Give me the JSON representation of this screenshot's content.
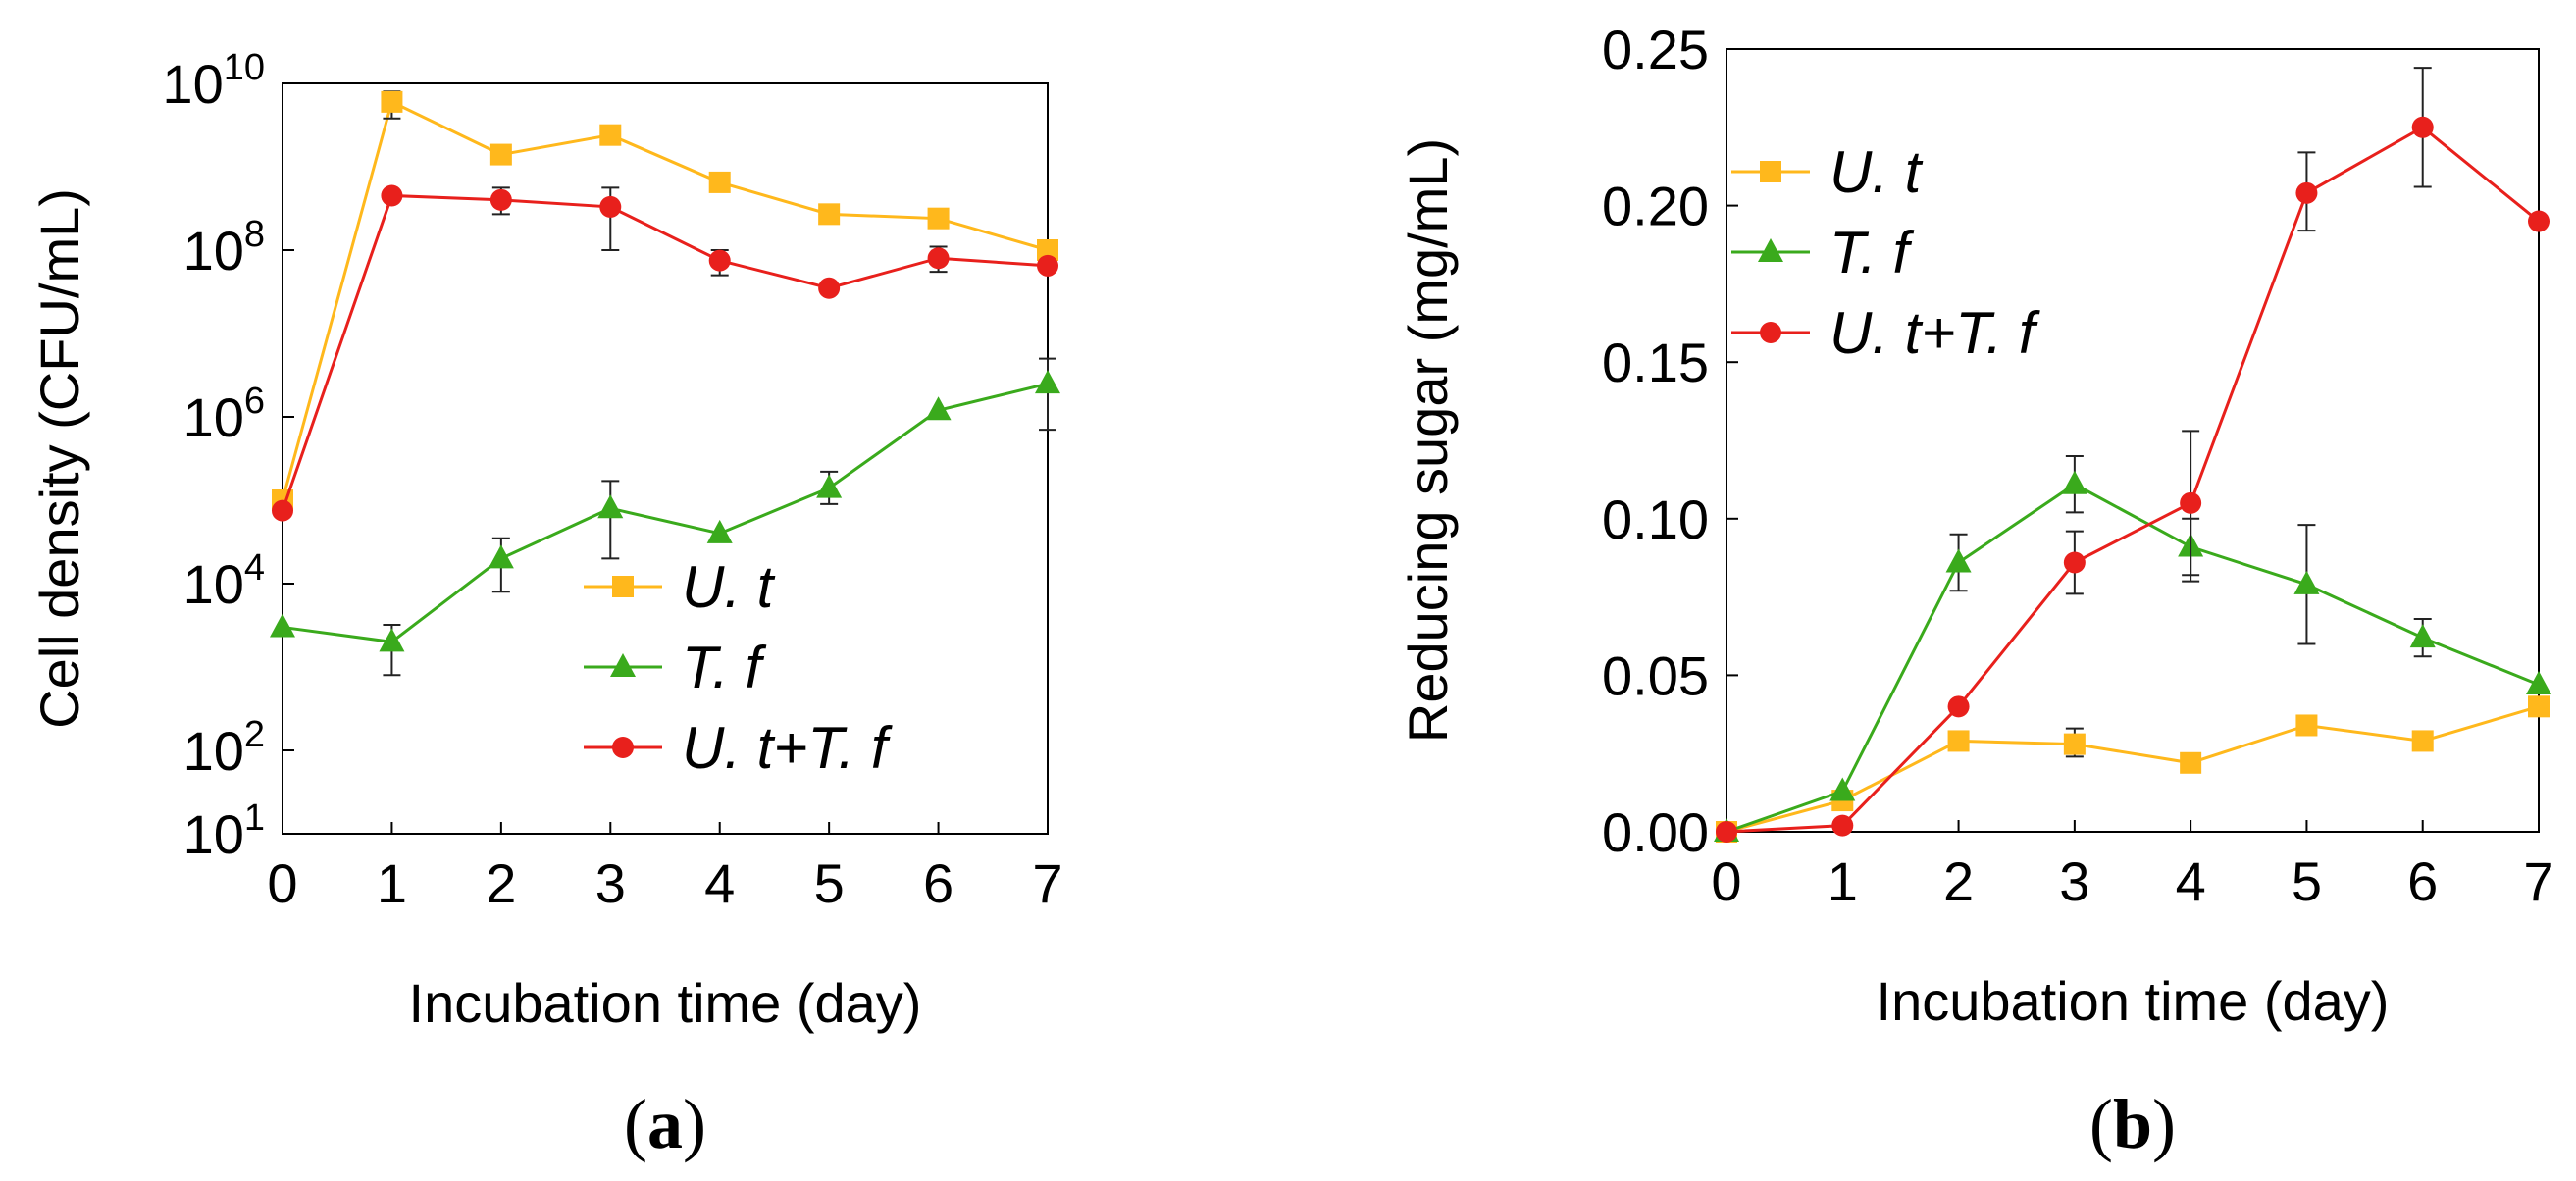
{
  "chart_data": [
    {
      "type": "line",
      "panel_label": "(a)",
      "panel_letter": "a",
      "xlabel": "Incubation time (day)",
      "ylabel": "Cell density (CFU/mL)",
      "yscale": "log",
      "xlim": [
        0,
        7
      ],
      "ylim": [
        10,
        10000000000
      ],
      "x": [
        0,
        1,
        2,
        3,
        4,
        5,
        6,
        7
      ],
      "xticks": [
        "0",
        "1",
        "2",
        "3",
        "4",
        "5",
        "6",
        "7"
      ],
      "yticks": [
        {
          "value": 10,
          "base": "10",
          "exp": "1"
        },
        {
          "value": 100,
          "base": "10",
          "exp": "2"
        },
        {
          "value": 10000,
          "base": "10",
          "exp": "4"
        },
        {
          "value": 1000000,
          "base": "10",
          "exp": "6"
        },
        {
          "value": 100000000,
          "base": "10",
          "exp": "8"
        },
        {
          "value": 10000000000,
          "base": "10",
          "exp": "10"
        }
      ],
      "legend_position": "bottom-right",
      "series": [
        {
          "name": "U. t",
          "color": "#FFB81C",
          "marker": "square",
          "values": [
            100000,
            6000000000,
            1400000000,
            2400000000,
            650000000,
            270000000,
            240000000,
            100000000
          ],
          "err_low": [
            null,
            3800000000,
            null,
            null,
            null,
            null,
            null,
            null
          ],
          "err_high": [
            null,
            8000000000,
            null,
            null,
            null,
            null,
            null,
            null
          ]
        },
        {
          "name": "T. f",
          "color": "#3AAA1C",
          "marker": "triangle",
          "values": [
            3000,
            2000,
            20000,
            80000,
            40000,
            140000,
            1200000,
            2500000
          ],
          "err_low": [
            null,
            800,
            8000,
            20000,
            null,
            90000,
            null,
            700000
          ],
          "err_high": [
            null,
            3200,
            35000,
            170000,
            null,
            220000,
            null,
            5000000
          ]
        },
        {
          "name": "U. t+T. f",
          "color": "#E8201C",
          "marker": "circle",
          "values": [
            75000,
            450000000,
            400000000,
            330000000,
            75000000,
            35000000,
            80000000,
            65000000
          ],
          "err_low": [
            null,
            null,
            270000000,
            100000000,
            50000000,
            null,
            55000000,
            null
          ],
          "err_high": [
            null,
            null,
            560000000,
            560000000,
            100000000,
            null,
            110000000,
            null
          ]
        }
      ]
    },
    {
      "type": "line",
      "panel_label": "(b)",
      "panel_letter": "b",
      "xlabel": "Incubation time (day)",
      "ylabel": "Reducing sugar (mg/mL)",
      "yscale": "linear",
      "xlim": [
        0,
        7
      ],
      "ylim": [
        0,
        0.25
      ],
      "x": [
        0,
        1,
        2,
        3,
        4,
        5,
        6,
        7
      ],
      "xticks": [
        "0",
        "1",
        "2",
        "3",
        "4",
        "5",
        "6",
        "7"
      ],
      "yticks": [
        {
          "value": 0,
          "label": "0.00"
        },
        {
          "value": 0.05,
          "label": "0.05"
        },
        {
          "value": 0.1,
          "label": "0.10"
        },
        {
          "value": 0.15,
          "label": "0.15"
        },
        {
          "value": 0.2,
          "label": "0.20"
        },
        {
          "value": 0.25,
          "label": "0.25"
        }
      ],
      "legend_position": "top-left",
      "series": [
        {
          "name": "U. t",
          "color": "#FFB81C",
          "marker": "square",
          "values": [
            0.0,
            0.01,
            0.029,
            0.028,
            0.022,
            0.034,
            0.029,
            0.04
          ],
          "err_low": [
            null,
            null,
            null,
            0.024,
            null,
            null,
            null,
            null
          ],
          "err_high": [
            null,
            null,
            null,
            0.033,
            null,
            null,
            null,
            null
          ]
        },
        {
          "name": "T. f",
          "color": "#3AAA1C",
          "marker": "triangle",
          "values": [
            0.0,
            0.013,
            0.086,
            0.111,
            0.091,
            0.079,
            0.062,
            0.047
          ],
          "err_low": [
            null,
            null,
            0.077,
            0.102,
            0.08,
            0.06,
            0.056,
            null
          ],
          "err_high": [
            null,
            null,
            0.095,
            0.12,
            0.1,
            0.098,
            0.068,
            null
          ]
        },
        {
          "name": "U. t+T. f",
          "color": "#E8201C",
          "marker": "circle",
          "values": [
            0.0,
            0.002,
            0.04,
            0.086,
            0.105,
            0.204,
            0.225,
            0.195
          ],
          "err_low": [
            null,
            null,
            null,
            0.076,
            0.082,
            0.192,
            0.206,
            null
          ],
          "err_high": [
            null,
            null,
            null,
            0.096,
            0.128,
            0.217,
            0.244,
            null
          ]
        }
      ]
    }
  ]
}
